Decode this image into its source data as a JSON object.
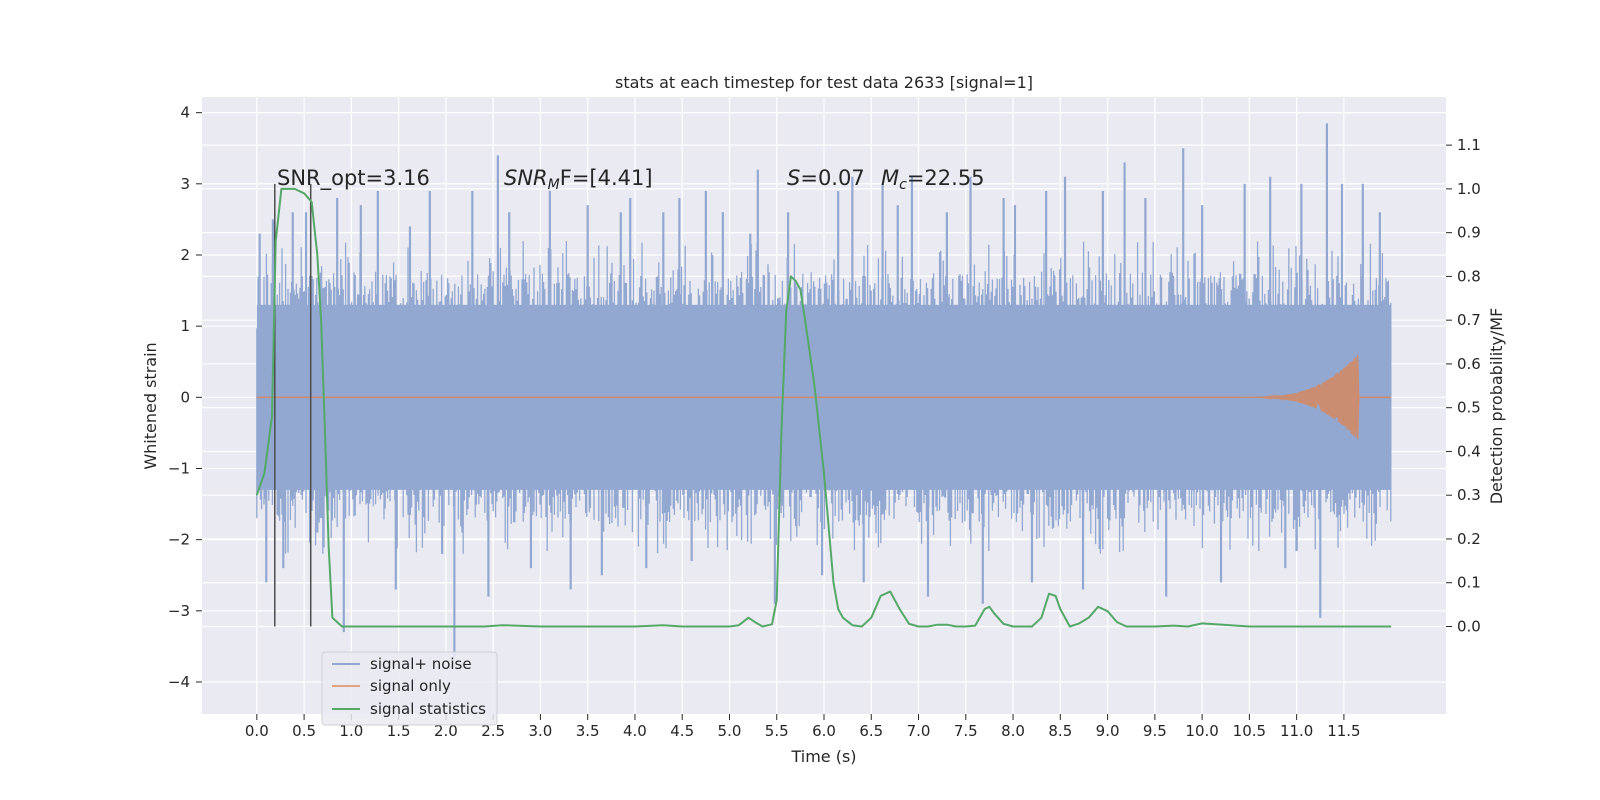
{
  "chart_data": {
    "type": "line",
    "title": "stats at each timestep for test data 2633 [signal=1]",
    "xlabel": "Time (s)",
    "ylabel": "Whitened strain",
    "ylabel_right": "Detection probability/MF",
    "xlim": [
      -0.58,
      12.58
    ],
    "ylim": [
      -4.45,
      4.22
    ],
    "ylim_right": [
      -0.2,
      1.21
    ],
    "x_ticks": [
      "0.0",
      "0.5",
      "1.0",
      "1.5",
      "2.0",
      "2.5",
      "3.0",
      "3.5",
      "4.0",
      "4.5",
      "5.0",
      "5.5",
      "6.0",
      "6.5",
      "7.0",
      "7.5",
      "8.0",
      "8.5",
      "9.0",
      "9.5",
      "10.0",
      "10.5",
      "11.0",
      "11.5"
    ],
    "y_ticks": [
      "4",
      "3",
      "2",
      "1",
      "0",
      "−1",
      "−2",
      "−3",
      "−4"
    ],
    "y_ticks_right": [
      "1.1",
      "1.0",
      "0.9",
      "0.8",
      "0.7",
      "0.6",
      "0.5",
      "0.4",
      "0.3",
      "0.2",
      "0.1",
      "0.0"
    ],
    "grid": true,
    "legend_placement": "lower-left",
    "annotations": {
      "snr_opt": "SNR_opt=3.16",
      "snr_mf_main": "SNR",
      "snr_mf_sub": "M",
      "snr_mf_rest": "F=[4.41]",
      "s_var": "S",
      "s_rest": "=0.07",
      "mc_var": "M",
      "mc_sub": "c",
      "mc_rest": "=22.55"
    },
    "vertical_markers": [
      0.19,
      0.57
    ],
    "marker_range": [
      -3.22,
      3.0
    ],
    "series": [
      {
        "name": "signal+ noise",
        "color": "#92a8d1",
        "axis": "left",
        "x_range": [
          0.0,
          12.0
        ],
        "band": [
          -1.3,
          1.3
        ],
        "typical_peaks": [
          2.2,
          -2.2
        ],
        "spikes": [
          [
            0.03,
            2.3
          ],
          [
            0.1,
            -2.6
          ],
          [
            0.17,
            2.5
          ],
          [
            0.28,
            -2.4
          ],
          [
            0.38,
            2.6
          ],
          [
            0.52,
            2.6
          ],
          [
            0.64,
            -1.9
          ],
          [
            0.85,
            2.8
          ],
          [
            0.92,
            -3.3
          ],
          [
            1.1,
            2.7
          ],
          [
            1.28,
            2.9
          ],
          [
            1.47,
            -2.7
          ],
          [
            1.62,
            2.4
          ],
          [
            1.83,
            2.9
          ],
          [
            1.96,
            -2.2
          ],
          [
            2.09,
            -3.65
          ],
          [
            2.28,
            2.9
          ],
          [
            2.45,
            -2.8
          ],
          [
            2.55,
            3.4
          ],
          [
            2.67,
            2.6
          ],
          [
            2.9,
            -2.4
          ],
          [
            3.1,
            2.9
          ],
          [
            3.32,
            -2.7
          ],
          [
            3.5,
            2.7
          ],
          [
            3.65,
            -2.5
          ],
          [
            3.85,
            2.6
          ],
          [
            3.95,
            2.8
          ],
          [
            4.12,
            -2.4
          ],
          [
            4.3,
            2.6
          ],
          [
            4.47,
            2.8
          ],
          [
            4.6,
            -2.3
          ],
          [
            4.75,
            2.9
          ],
          [
            4.93,
            2.6
          ],
          [
            5.22,
            2.3
          ],
          [
            5.3,
            3.2
          ],
          [
            5.48,
            -2.9
          ],
          [
            5.62,
            2.6
          ],
          [
            5.98,
            -2.5
          ],
          [
            6.15,
            2.9
          ],
          [
            6.3,
            3.1
          ],
          [
            6.42,
            -2.6
          ],
          [
            6.62,
            3.0
          ],
          [
            6.78,
            2.7
          ],
          [
            6.93,
            3.1
          ],
          [
            7.1,
            -2.8
          ],
          [
            7.3,
            2.6
          ],
          [
            7.55,
            3.1
          ],
          [
            7.68,
            -2.9
          ],
          [
            7.9,
            2.8
          ],
          [
            8.02,
            2.7
          ],
          [
            8.2,
            -2.6
          ],
          [
            8.35,
            2.9
          ],
          [
            8.55,
            3.1
          ],
          [
            8.74,
            -2.7
          ],
          [
            8.95,
            2.9
          ],
          [
            9.18,
            3.3
          ],
          [
            9.4,
            2.8
          ],
          [
            9.62,
            -2.8
          ],
          [
            9.8,
            3.5
          ],
          [
            10.0,
            2.7
          ],
          [
            10.2,
            -2.6
          ],
          [
            10.45,
            3.0
          ],
          [
            10.72,
            3.1
          ],
          [
            10.88,
            -2.4
          ],
          [
            11.05,
            3.0
          ],
          [
            11.25,
            -3.1
          ],
          [
            11.32,
            3.85
          ],
          [
            11.48,
            3.0
          ],
          [
            11.7,
            3.0
          ],
          [
            11.88,
            2.6
          ]
        ]
      },
      {
        "name": "signal only",
        "color": "#dd8452",
        "axis": "left",
        "x_range": [
          0.0,
          12.0
        ],
        "chirp_start": 10.4,
        "chirp_end": 11.66,
        "peak_amplitude": 0.62
      },
      {
        "name": "signal statistics",
        "color": "#55a868",
        "axis": "right",
        "x": [
          0.0,
          0.08,
          0.16,
          0.2,
          0.26,
          0.3,
          0.4,
          0.5,
          0.58,
          0.6,
          0.64,
          0.68,
          0.72,
          0.76,
          0.8,
          0.9,
          1.0,
          1.5,
          2.0,
          2.4,
          2.6,
          3.0,
          3.5,
          4.0,
          4.3,
          4.5,
          4.8,
          5.0,
          5.1,
          5.2,
          5.27,
          5.35,
          5.45,
          5.5,
          5.55,
          5.6,
          5.65,
          5.7,
          5.75,
          5.8,
          5.9,
          6.0,
          6.1,
          6.15,
          6.2,
          6.3,
          6.4,
          6.5,
          6.6,
          6.7,
          6.75,
          6.8,
          6.9,
          7.0,
          7.1,
          7.2,
          7.3,
          7.4,
          7.5,
          7.6,
          7.7,
          7.75,
          7.8,
          7.9,
          8.0,
          8.1,
          8.2,
          8.3,
          8.38,
          8.45,
          8.5,
          8.6,
          8.7,
          8.8,
          8.9,
          9.0,
          9.1,
          9.2,
          9.3,
          9.5,
          9.7,
          9.85,
          10.0,
          10.5,
          11.0,
          11.5,
          11.93,
          12.0
        ],
        "values": [
          0.3,
          0.35,
          0.48,
          0.88,
          1.0,
          1.0,
          1.0,
          0.99,
          0.97,
          0.93,
          0.85,
          0.7,
          0.45,
          0.18,
          0.02,
          0.0,
          0.0,
          0.0,
          0.0,
          0.0,
          0.003,
          0.0,
          0.0,
          0.0,
          0.003,
          0.0,
          0.0,
          0.0,
          0.003,
          0.02,
          0.01,
          0.0,
          0.005,
          0.06,
          0.45,
          0.72,
          0.8,
          0.79,
          0.77,
          0.7,
          0.55,
          0.35,
          0.1,
          0.04,
          0.02,
          0.003,
          0.0,
          0.02,
          0.07,
          0.08,
          0.06,
          0.04,
          0.006,
          0.0,
          0.0,
          0.004,
          0.004,
          0.0,
          0.0,
          0.002,
          0.04,
          0.045,
          0.03,
          0.006,
          0.0,
          0.0,
          0.0,
          0.02,
          0.075,
          0.07,
          0.04,
          0.0,
          0.007,
          0.02,
          0.045,
          0.035,
          0.01,
          0.0,
          0.0,
          0.0,
          0.002,
          0.0,
          0.007,
          0.0,
          0.0,
          0.0,
          0.0,
          0.0
        ]
      }
    ]
  }
}
